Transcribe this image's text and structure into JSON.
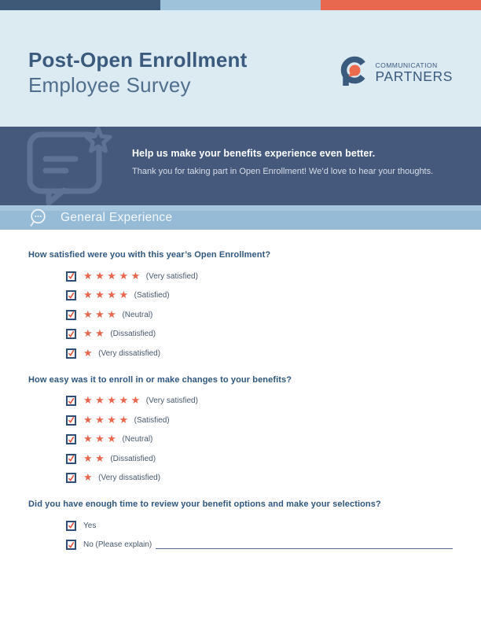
{
  "colors": {
    "accent_navy": "#3e5878",
    "accent_light_blue": "#9dc2da",
    "accent_orange": "#e8684f",
    "header_bg": "#dceaf2",
    "banner_bg": "#45597c",
    "banner_icon": "#5d7295",
    "section_bg": "#95bbd7",
    "title_text": "#3a5a7e",
    "question_text": "#2e567d",
    "option_text": "#46586b",
    "star_color": "#e8654e",
    "checkbox_border": "#2e4e76",
    "check_color": "#df4f38"
  },
  "header": {
    "title_line1": "Post-Open Enrollment",
    "title_line2": "Employee Survey",
    "logo": {
      "line1": "COMMUNICATION",
      "line2": "PARTNERS",
      "mark_icon": "speech-bubble-c-mark"
    }
  },
  "banner": {
    "icon": "chat-bubble-star-icon",
    "headline": "Help us make your benefits experience even better.",
    "body": "Thank you for taking part in Open Enrollment! We’d love to hear your thoughts."
  },
  "section": {
    "icon": "chat-ellipsis-icon",
    "title": "General Experience"
  },
  "questions": [
    {
      "text": "How satisfied were you with this year’s Open Enrollment?",
      "options": [
        {
          "checked": true,
          "stars": 5,
          "label": "(Very satisfied)"
        },
        {
          "checked": true,
          "stars": 4,
          "label": "(Satisfied)"
        },
        {
          "checked": true,
          "stars": 3,
          "label": "(Neutral)"
        },
        {
          "checked": true,
          "stars": 2,
          "label": "(Dissatisfied)"
        },
        {
          "checked": true,
          "stars": 1,
          "label": "(Very dissatisfied)"
        }
      ]
    },
    {
      "text": "How easy was it to enroll in or make changes to your benefits?",
      "options": [
        {
          "checked": true,
          "stars": 5,
          "label": "(Very satisfied)"
        },
        {
          "checked": true,
          "stars": 4,
          "label": "(Satisfied)"
        },
        {
          "checked": true,
          "stars": 3,
          "label": "(Neutral)"
        },
        {
          "checked": true,
          "stars": 2,
          "label": "(Dissatisfied)"
        },
        {
          "checked": true,
          "stars": 1,
          "label": "(Very dissatisfied)"
        }
      ]
    },
    {
      "text": "Did you have enough time to review your benefit options and make your selections?",
      "options": [
        {
          "checked": true,
          "stars": 0,
          "label": "Yes"
        },
        {
          "checked": true,
          "stars": 0,
          "label": "No (Please explain)",
          "write_in_line": true
        }
      ]
    }
  ]
}
